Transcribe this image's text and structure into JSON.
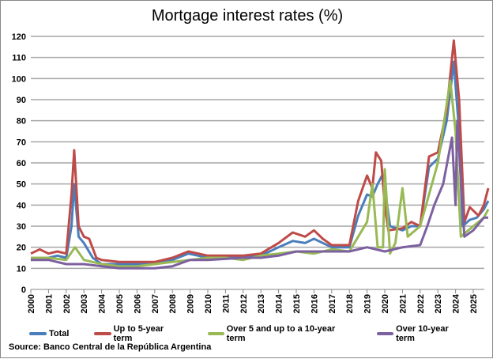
{
  "chart_data": {
    "type": "line",
    "title": "Mortgage interest rates (%)",
    "xlabel": "",
    "ylabel": "",
    "xlim": [
      2000,
      2025.9
    ],
    "ylim": [
      0,
      120
    ],
    "yticks": [
      0,
      10,
      20,
      30,
      40,
      50,
      60,
      70,
      80,
      90,
      100,
      110,
      120
    ],
    "xticks": [
      "2000",
      "2001",
      "2002",
      "2003",
      "2004",
      "2005",
      "2006",
      "2007",
      "2008",
      "2009",
      "2010",
      "2011",
      "2012",
      "2013",
      "2014",
      "2015",
      "2016",
      "2017",
      "2018",
      "2019",
      "2020",
      "2021",
      "2022",
      "2023",
      "2024",
      "2025"
    ],
    "grid": "horizontal",
    "legend_position": "bottom",
    "series": [
      {
        "name": "Total",
        "color": "#4a7ebb",
        "x": [
          2000,
          2000.5,
          2001,
          2001.5,
          2002,
          2002.3,
          2002.45,
          2002.7,
          2003,
          2003.5,
          2004,
          2005,
          2006,
          2007,
          2008,
          2008.9,
          2010,
          2011,
          2012,
          2013,
          2014,
          2014.8,
          2015.5,
          2016,
          2016.5,
          2017,
          2018,
          2018.5,
          2019,
          2019.3,
          2019.6,
          2019.85,
          2020.05,
          2020.3,
          2021,
          2021.5,
          2022,
          2022.5,
          2023,
          2023.5,
          2023.9,
          2024.15,
          2024.4,
          2024.8,
          2025.2,
          2025.6,
          2025.85
        ],
        "y": [
          14,
          15,
          15,
          16,
          15,
          30,
          50,
          25,
          22,
          15,
          12,
          12,
          12,
          12,
          14,
          17,
          15,
          15,
          15,
          16,
          20,
          23,
          22,
          24,
          22,
          20,
          20,
          35,
          45,
          44,
          50,
          54,
          45,
          30,
          28,
          30,
          30,
          58,
          62,
          80,
          108,
          80,
          30,
          33,
          34,
          38,
          42
        ]
      },
      {
        "name": "Up to 5-year term",
        "color": "#be4b48",
        "x": [
          2000,
          2000.5,
          2001,
          2001.5,
          2002,
          2002.3,
          2002.45,
          2002.7,
          2003,
          2003.3,
          2003.7,
          2004,
          2005,
          2006,
          2007,
          2008,
          2008.9,
          2010,
          2011,
          2012,
          2013,
          2014,
          2014.8,
          2015.5,
          2016,
          2016.5,
          2017,
          2018,
          2018.5,
          2019,
          2019.3,
          2019.5,
          2019.8,
          2020,
          2020.2,
          2021,
          2021.5,
          2022,
          2022.5,
          2023,
          2023.5,
          2023.9,
          2024.2,
          2024.5,
          2024.8,
          2025.3,
          2025.6,
          2025.85
        ],
        "y": [
          17,
          19,
          17,
          18,
          17,
          45,
          66,
          30,
          25,
          24,
          15,
          14,
          13,
          13,
          13,
          15,
          18,
          16,
          16,
          16,
          17,
          22,
          27,
          25,
          28,
          24,
          21,
          21,
          42,
          54,
          48,
          65,
          61,
          40,
          28,
          29,
          32,
          30,
          63,
          65,
          85,
          118,
          90,
          32,
          39,
          35,
          40,
          48
        ]
      },
      {
        "name": "Over 5 and up to a 10-year term",
        "color": "#98b954",
        "x": [
          2000,
          2001,
          2002,
          2002.5,
          2003,
          2004,
          2005,
          2006,
          2007,
          2008,
          2009,
          2010,
          2011,
          2012,
          2013,
          2014,
          2015,
          2016,
          2017,
          2018,
          2018.5,
          2019,
          2019.3,
          2019.6,
          2019.9,
          2020,
          2020.3,
          2020.6,
          2021,
          2021.3,
          2022,
          2022.5,
          2023,
          2023.7,
          2024,
          2024.3,
          2025,
          2025.6,
          2025.85
        ],
        "y": [
          15,
          15,
          14,
          20,
          14,
          12,
          11,
          11,
          12,
          13,
          14,
          15,
          15,
          14,
          16,
          17,
          18,
          17,
          19,
          18,
          25,
          32,
          50,
          20,
          20,
          57,
          17,
          22,
          48,
          25,
          30,
          45,
          60,
          99,
          75,
          25,
          30,
          34,
          38
        ]
      },
      {
        "name": "Over 10-year term",
        "color": "#7d60a0",
        "x": [
          2000,
          2001,
          2002,
          2003,
          2004,
          2005,
          2007,
          2008,
          2009,
          2010,
          2012,
          2013,
          2014,
          2015,
          2016,
          2017,
          2018,
          2019,
          2020,
          2021,
          2022,
          2022.4,
          2022.8,
          2023.3,
          2023.8,
          2024.0,
          2024.1,
          2024.5,
          2025,
          2025.6,
          2025.85
        ],
        "y": [
          14,
          14,
          12,
          12,
          11,
          10,
          10,
          11,
          14,
          14,
          15,
          15,
          16,
          18,
          18,
          18,
          18,
          20,
          18,
          20,
          21,
          30,
          40,
          50,
          72,
          40,
          80,
          25,
          28,
          34,
          34
        ]
      }
    ],
    "source": "Source: Banco Central de la República Argentina"
  }
}
